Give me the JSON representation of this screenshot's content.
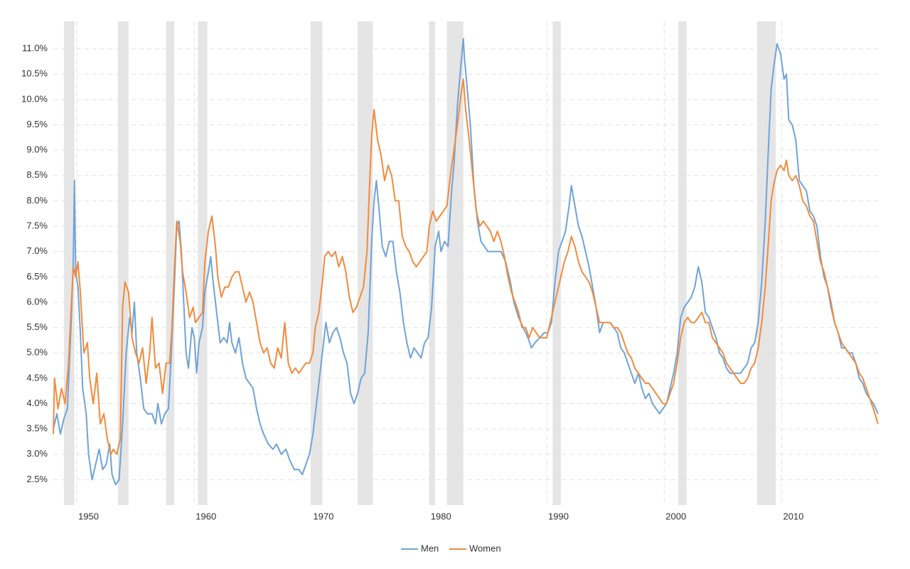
{
  "chart_data": {
    "type": "line",
    "xlim": [
      1948,
      2018.5
    ],
    "xticks": [
      1950,
      1960,
      1970,
      1980,
      1990,
      2000,
      2010
    ],
    "ylim": [
      2.0,
      11.5
    ],
    "yticks": [
      {
        "value": 2.5,
        "label": "2.5%"
      },
      {
        "value": 3.0,
        "label": "3.0%"
      },
      {
        "value": 3.5,
        "label": "3.5%"
      },
      {
        "value": 4.0,
        "label": "4.0%"
      },
      {
        "value": 4.5,
        "label": "4.5%"
      },
      {
        "value": 5.0,
        "label": "5.0%"
      },
      {
        "value": 5.5,
        "label": "5.5%"
      },
      {
        "value": 6.0,
        "label": "6.0%"
      },
      {
        "value": 6.5,
        "label": "6.5%"
      },
      {
        "value": 7.0,
        "label": "7.0%"
      },
      {
        "value": 7.5,
        "label": "7.5%"
      },
      {
        "value": 8.0,
        "label": "8.0%"
      },
      {
        "value": 8.5,
        "label": "8.5%"
      },
      {
        "value": 9.0,
        "label": "9.0%"
      },
      {
        "value": 9.5,
        "label": "9.5%"
      },
      {
        "value": 10.0,
        "label": "10.0%"
      },
      {
        "value": 10.5,
        "label": "10.5%"
      },
      {
        "value": 11.0,
        "label": "11.0%"
      }
    ],
    "grid": true,
    "recessions": [
      [
        1948.9,
        1949.8
      ],
      [
        1953.5,
        1954.4
      ],
      [
        1957.6,
        1958.3
      ],
      [
        1960.3,
        1961.1
      ],
      [
        1969.9,
        1970.9
      ],
      [
        1973.9,
        1975.2
      ],
      [
        1980.0,
        1980.5
      ],
      [
        1981.5,
        1982.9
      ],
      [
        1990.5,
        1991.2
      ],
      [
        2001.2,
        2001.9
      ],
      [
        2007.9,
        2009.5
      ]
    ],
    "recession_color": "#e5e5e5",
    "legend": "bottom",
    "series": [
      {
        "name": "Men",
        "color": "#6fa3d8",
        "x": [
          1948.0,
          1948.3,
          1948.6,
          1948.9,
          1949.2,
          1949.5,
          1949.7,
          1949.8,
          1949.9,
          1950.1,
          1950.3,
          1950.5,
          1950.8,
          1951.0,
          1951.3,
          1951.6,
          1951.9,
          1952.2,
          1952.5,
          1952.8,
          1953.0,
          1953.3,
          1953.6,
          1953.9,
          1954.2,
          1954.5,
          1954.7,
          1954.9,
          1955.1,
          1955.4,
          1955.7,
          1956.0,
          1956.4,
          1956.7,
          1956.9,
          1957.2,
          1957.5,
          1957.8,
          1958.0,
          1958.3,
          1958.5,
          1958.7,
          1958.9,
          1959.1,
          1959.3,
          1959.5,
          1959.8,
          1960.0,
          1960.2,
          1960.4,
          1960.7,
          1960.9,
          1961.2,
          1961.4,
          1961.6,
          1961.9,
          1962.2,
          1962.5,
          1962.8,
          1963.0,
          1963.2,
          1963.5,
          1963.8,
          1964.1,
          1964.4,
          1964.7,
          1965.0,
          1965.3,
          1965.6,
          1965.9,
          1966.3,
          1966.7,
          1967.0,
          1967.4,
          1967.8,
          1968.1,
          1968.5,
          1968.9,
          1969.2,
          1969.5,
          1969.8,
          1970.1,
          1970.4,
          1970.7,
          1971.0,
          1971.2,
          1971.5,
          1971.8,
          1972.1,
          1972.4,
          1972.7,
          1973.0,
          1973.3,
          1973.6,
          1973.9,
          1974.2,
          1974.5,
          1974.8,
          1975.1,
          1975.3,
          1975.5,
          1975.7,
          1976.0,
          1976.3,
          1976.6,
          1976.9,
          1977.2,
          1977.5,
          1977.8,
          1978.1,
          1978.4,
          1978.7,
          1979.0,
          1979.3,
          1979.6,
          1979.9,
          1980.2,
          1980.5,
          1980.8,
          1981.0,
          1981.3,
          1981.6,
          1981.9,
          1982.1,
          1982.4,
          1982.7,
          1982.9,
          1983.0,
          1983.2,
          1983.5,
          1983.8,
          1984.1,
          1984.4,
          1984.7,
          1985.0,
          1985.4,
          1985.8,
          1986.1,
          1986.5,
          1986.9,
          1987.2,
          1987.6,
          1988.0,
          1988.4,
          1988.7,
          1989.0,
          1989.4,
          1989.8,
          1990.1,
          1990.4,
          1990.7,
          1991.0,
          1991.3,
          1991.6,
          1991.9,
          1992.1,
          1992.4,
          1992.7,
          1993.0,
          1993.3,
          1993.6,
          1993.9,
          1994.2,
          1994.5,
          1994.8,
          1995.1,
          1995.4,
          1995.7,
          1996.0,
          1996.3,
          1996.6,
          1996.9,
          1997.2,
          1997.5,
          1997.8,
          1998.1,
          1998.4,
          1998.7,
          1999.0,
          1999.3,
          1999.6,
          1999.9,
          2000.2,
          2000.5,
          2000.8,
          2001.1,
          2001.4,
          2001.7,
          2002.0,
          2002.3,
          2002.6,
          2002.9,
          2003.2,
          2003.5,
          2003.8,
          2004.1,
          2004.4,
          2004.7,
          2005.0,
          2005.3,
          2005.6,
          2005.9,
          2006.2,
          2006.5,
          2006.8,
          2007.1,
          2007.4,
          2007.7,
          2008.0,
          2008.3,
          2008.6,
          2008.9,
          2009.1,
          2009.3,
          2009.6,
          2009.9,
          2010.2,
          2010.4,
          2010.6,
          2010.9,
          2011.2,
          2011.5,
          2011.8,
          2012.1,
          2012.4,
          2012.7,
          2013.0,
          2013.3,
          2013.6,
          2013.9,
          2014.2,
          2014.5,
          2014.8,
          2015.1,
          2015.4,
          2015.7,
          2016.0,
          2016.3,
          2016.6,
          2016.9,
          2017.2,
          2017.5,
          2017.8,
          2018.2
        ],
        "values": [
          3.5,
          3.8,
          3.4,
          3.7,
          3.9,
          5.5,
          6.8,
          8.4,
          6.6,
          6.3,
          5.4,
          4.3,
          3.8,
          3.0,
          2.5,
          2.8,
          3.1,
          2.7,
          2.8,
          3.2,
          2.6,
          2.4,
          2.5,
          3.6,
          5.0,
          5.7,
          5.4,
          6.0,
          5.0,
          4.5,
          3.9,
          3.8,
          3.8,
          3.6,
          4.0,
          3.6,
          3.8,
          3.9,
          4.8,
          6.3,
          7.5,
          7.6,
          7.0,
          6.0,
          5.0,
          4.7,
          5.5,
          5.3,
          4.6,
          5.2,
          5.5,
          6.2,
          6.6,
          6.9,
          6.4,
          5.8,
          5.2,
          5.3,
          5.2,
          5.6,
          5.2,
          5.0,
          5.3,
          4.8,
          4.5,
          4.4,
          4.3,
          3.9,
          3.6,
          3.4,
          3.2,
          3.1,
          3.2,
          3.0,
          3.1,
          2.9,
          2.7,
          2.7,
          2.6,
          2.8,
          3.0,
          3.4,
          4.0,
          4.6,
          5.2,
          5.6,
          5.2,
          5.4,
          5.5,
          5.3,
          5.0,
          4.8,
          4.2,
          4.0,
          4.2,
          4.5,
          4.6,
          5.4,
          7.2,
          8.0,
          8.4,
          7.9,
          7.1,
          6.9,
          7.2,
          7.2,
          6.6,
          6.2,
          5.6,
          5.2,
          4.9,
          5.1,
          5.0,
          4.9,
          5.2,
          5.3,
          5.9,
          7.1,
          7.4,
          7.0,
          7.2,
          7.1,
          8.2,
          8.7,
          9.9,
          10.7,
          11.2,
          10.8,
          10.3,
          9.5,
          8.3,
          7.6,
          7.2,
          7.1,
          7.0,
          7.0,
          7.0,
          7.0,
          6.8,
          6.4,
          6.0,
          5.7,
          5.5,
          5.3,
          5.1,
          5.2,
          5.3,
          5.4,
          5.4,
          5.6,
          6.4,
          7.0,
          7.2,
          7.4,
          7.9,
          8.3,
          7.9,
          7.5,
          7.3,
          7.0,
          6.7,
          6.3,
          5.9,
          5.4,
          5.6,
          5.6,
          5.6,
          5.5,
          5.4,
          5.1,
          5.0,
          4.8,
          4.6,
          4.4,
          4.6,
          4.3,
          4.1,
          4.2,
          4.0,
          3.9,
          3.8,
          3.9,
          4.0,
          4.3,
          4.6,
          5.0,
          5.7,
          5.9,
          6.0,
          6.1,
          6.3,
          6.7,
          6.4,
          5.8,
          5.7,
          5.5,
          5.3,
          5.0,
          4.9,
          4.7,
          4.6,
          4.6,
          4.6,
          4.6,
          4.7,
          4.8,
          5.1,
          5.2,
          5.6,
          6.4,
          7.6,
          9.2,
          10.2,
          10.6,
          11.1,
          10.9,
          10.4,
          10.5,
          9.6,
          9.5,
          9.2,
          8.4,
          8.3,
          8.2,
          7.8,
          7.7,
          7.5,
          6.9,
          6.5,
          6.3,
          5.9,
          5.6,
          5.4,
          5.1,
          5.1,
          5.0,
          5.0,
          4.8,
          4.5,
          4.4,
          4.2,
          4.1,
          4.0,
          3.8
        ]
      },
      {
        "name": "Women",
        "color": "#f28a3c",
        "x": [
          1948.0,
          1948.1,
          1948.4,
          1948.7,
          1949.0,
          1949.3,
          1949.5,
          1949.7,
          1949.9,
          1950.1,
          1950.3,
          1950.6,
          1950.9,
          1951.1,
          1951.4,
          1951.7,
          1952.0,
          1952.3,
          1952.6,
          1952.9,
          1953.1,
          1953.4,
          1953.7,
          1953.9,
          1954.1,
          1954.4,
          1954.7,
          1955.0,
          1955.3,
          1955.6,
          1955.9,
          1956.2,
          1956.4,
          1956.7,
          1957.0,
          1957.3,
          1957.6,
          1957.9,
          1958.1,
          1958.3,
          1958.5,
          1958.8,
          1959.0,
          1959.3,
          1959.6,
          1959.9,
          1960.1,
          1960.4,
          1960.7,
          1960.9,
          1961.2,
          1961.5,
          1961.8,
          1962.0,
          1962.3,
          1962.6,
          1962.9,
          1963.2,
          1963.5,
          1963.8,
          1964.1,
          1964.4,
          1964.7,
          1965.0,
          1965.3,
          1965.6,
          1965.9,
          1966.2,
          1966.5,
          1966.8,
          1967.1,
          1967.4,
          1967.7,
          1968.0,
          1968.3,
          1968.6,
          1968.9,
          1969.2,
          1969.5,
          1969.8,
          1970.1,
          1970.3,
          1970.6,
          1970.9,
          1971.1,
          1971.4,
          1971.7,
          1972.0,
          1972.3,
          1972.6,
          1972.9,
          1973.2,
          1973.5,
          1973.8,
          1974.1,
          1974.4,
          1974.7,
          1974.9,
          1975.1,
          1975.3,
          1975.6,
          1975.9,
          1976.2,
          1976.5,
          1976.8,
          1977.1,
          1977.4,
          1977.7,
          1978.0,
          1978.3,
          1978.6,
          1978.9,
          1979.2,
          1979.5,
          1979.8,
          1980.0,
          1980.3,
          1980.6,
          1980.9,
          1981.2,
          1981.5,
          1981.8,
          1982.1,
          1982.4,
          1982.7,
          1982.9,
          1983.1,
          1983.4,
          1983.7,
          1984.0,
          1984.3,
          1984.6,
          1984.9,
          1985.2,
          1985.5,
          1985.8,
          1986.1,
          1986.4,
          1986.7,
          1987.0,
          1987.3,
          1987.6,
          1987.9,
          1988.2,
          1988.5,
          1988.8,
          1989.1,
          1989.4,
          1989.7,
          1990.0,
          1990.3,
          1990.6,
          1990.9,
          1991.2,
          1991.5,
          1991.8,
          1992.1,
          1992.4,
          1992.7,
          1993.0,
          1993.3,
          1993.6,
          1993.9,
          1994.2,
          1994.5,
          1994.8,
          1995.1,
          1995.4,
          1995.7,
          1996.0,
          1996.3,
          1996.6,
          1996.9,
          1997.2,
          1997.5,
          1997.8,
          1998.1,
          1998.4,
          1998.7,
          1999.0,
          1999.3,
          1999.6,
          1999.9,
          2000.2,
          2000.5,
          2000.8,
          2001.1,
          2001.4,
          2001.7,
          2002.0,
          2002.3,
          2002.6,
          2002.9,
          2003.2,
          2003.5,
          2003.8,
          2004.1,
          2004.4,
          2004.7,
          2005.0,
          2005.3,
          2005.6,
          2005.9,
          2006.2,
          2006.5,
          2006.8,
          2007.1,
          2007.4,
          2007.7,
          2008.0,
          2008.3,
          2008.6,
          2008.9,
          2009.1,
          2009.3,
          2009.6,
          2009.9,
          2010.2,
          2010.4,
          2010.6,
          2010.9,
          2011.2,
          2011.5,
          2011.8,
          2012.1,
          2012.4,
          2012.7,
          2013.0,
          2013.3,
          2013.6,
          2013.9,
          2014.2,
          2014.5,
          2014.8,
          2015.1,
          2015.4,
          2015.7,
          2016.0,
          2016.3,
          2016.6,
          2016.9,
          2017.2,
          2017.5,
          2017.8,
          2018.2
        ],
        "values": [
          3.4,
          4.5,
          3.9,
          4.3,
          4.0,
          4.8,
          5.8,
          6.7,
          6.5,
          6.8,
          6.2,
          5.0,
          5.2,
          4.5,
          4.0,
          4.6,
          3.6,
          3.8,
          3.3,
          3.0,
          3.1,
          3.0,
          3.3,
          5.9,
          6.4,
          6.2,
          5.3,
          5.0,
          4.8,
          5.1,
          4.4,
          5.0,
          5.7,
          4.7,
          4.8,
          4.2,
          4.8,
          4.8,
          5.5,
          6.6,
          7.6,
          7.2,
          6.6,
          6.2,
          5.7,
          5.9,
          5.6,
          5.7,
          5.8,
          6.8,
          7.4,
          7.7,
          7.1,
          6.5,
          6.1,
          6.3,
          6.3,
          6.5,
          6.6,
          6.6,
          6.3,
          6.0,
          6.2,
          6.0,
          5.6,
          5.2,
          5.0,
          5.1,
          4.8,
          4.7,
          5.1,
          4.9,
          5.6,
          4.8,
          4.6,
          4.7,
          4.6,
          4.7,
          4.8,
          4.8,
          5.0,
          5.5,
          5.8,
          6.4,
          6.9,
          7.0,
          6.9,
          7.0,
          6.7,
          6.9,
          6.6,
          6.1,
          5.8,
          5.9,
          6.1,
          6.3,
          7.0,
          8.2,
          9.3,
          9.8,
          9.2,
          8.9,
          8.4,
          8.7,
          8.5,
          8.0,
          8.0,
          7.3,
          7.1,
          7.0,
          6.8,
          6.7,
          6.8,
          6.9,
          7.0,
          7.5,
          7.8,
          7.6,
          7.7,
          7.8,
          7.9,
          8.5,
          9.0,
          9.5,
          10.1,
          10.4,
          9.8,
          9.2,
          8.5,
          7.8,
          7.5,
          7.6,
          7.5,
          7.4,
          7.2,
          7.4,
          7.2,
          6.9,
          6.5,
          6.2,
          6.0,
          5.8,
          5.5,
          5.5,
          5.3,
          5.5,
          5.4,
          5.3,
          5.3,
          5.3,
          5.6,
          5.9,
          6.2,
          6.5,
          6.8,
          7.0,
          7.3,
          7.1,
          6.8,
          6.6,
          6.5,
          6.4,
          6.2,
          5.9,
          5.6,
          5.6,
          5.6,
          5.6,
          5.5,
          5.5,
          5.4,
          5.2,
          5.0,
          4.9,
          4.7,
          4.6,
          4.5,
          4.4,
          4.4,
          4.3,
          4.2,
          4.1,
          4.0,
          4.0,
          4.2,
          4.4,
          4.8,
          5.3,
          5.6,
          5.7,
          5.6,
          5.6,
          5.7,
          5.8,
          5.6,
          5.6,
          5.3,
          5.2,
          5.1,
          5.0,
          4.8,
          4.7,
          4.6,
          4.5,
          4.4,
          4.4,
          4.5,
          4.7,
          4.8,
          5.1,
          5.6,
          6.3,
          7.3,
          8.0,
          8.3,
          8.6,
          8.7,
          8.6,
          8.8,
          8.5,
          8.4,
          8.5,
          8.3,
          8.0,
          7.9,
          7.7,
          7.6,
          7.2,
          6.8,
          6.6,
          6.3,
          6.0,
          5.6,
          5.4,
          5.2,
          5.1,
          5.0,
          4.9,
          4.8,
          4.6,
          4.5,
          4.3,
          4.1,
          3.9,
          3.6
        ]
      }
    ]
  }
}
